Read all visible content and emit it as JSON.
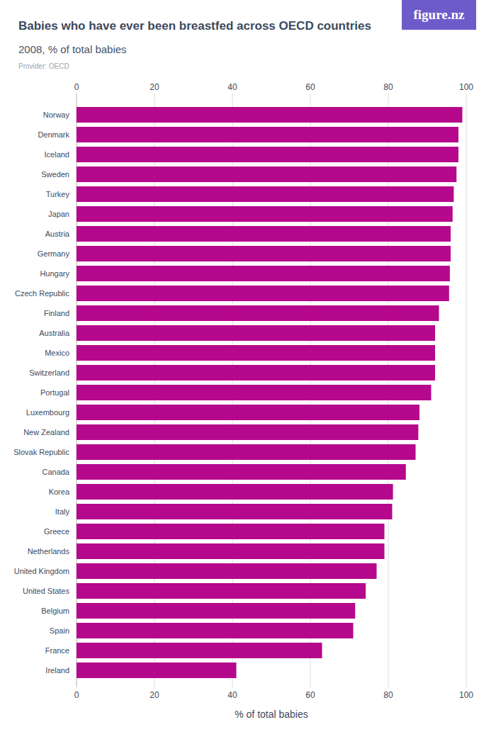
{
  "chart_data": {
    "type": "bar",
    "orientation": "horizontal",
    "title": "Babies who have ever been breastfed across OECD countries",
    "subtitle": "2008, % of total babies",
    "source": "Provider: OECD",
    "logo": "figure.nz",
    "x_label": "% of total babies",
    "categories": [
      "Norway",
      "Denmark",
      "Iceland",
      "Sweden",
      "Turkey",
      "Japan",
      "Austria",
      "Germany",
      "Hungary",
      "Czech Republic",
      "Finland",
      "Australia",
      "Mexico",
      "Switzerland",
      "Portugal",
      "Luxembourg",
      "New Zealand",
      "Slovak Republic",
      "Canada",
      "Korea",
      "Italy",
      "Greece",
      "Netherlands",
      "United Kingdom",
      "United States",
      "Belgium",
      "Spain",
      "France",
      "Ireland"
    ],
    "values": [
      99,
      98,
      98,
      97.5,
      96.8,
      96.5,
      96,
      96,
      95.8,
      95.6,
      93,
      92,
      92,
      92,
      91,
      88,
      87.7,
      87,
      84.5,
      81.2,
      81,
      79,
      79,
      77,
      74.2,
      71.5,
      71,
      63,
      41
    ],
    "color": "#b5088c",
    "xlim": [
      0,
      100
    ],
    "xticks": [
      0,
      20,
      40,
      60,
      80,
      100
    ],
    "grid": true
  }
}
